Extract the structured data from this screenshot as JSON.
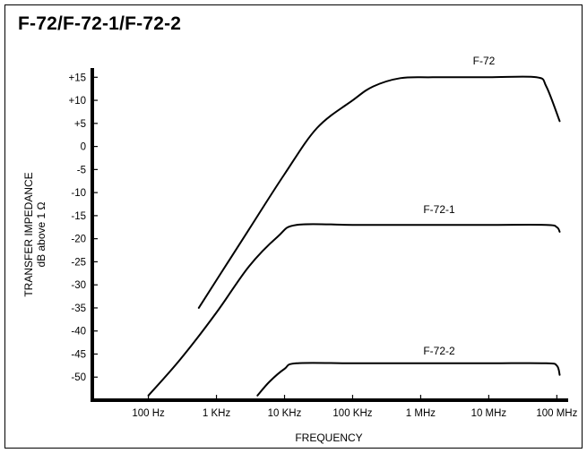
{
  "chart_data": {
    "type": "line",
    "title": "F-72/F-72-1/F-72-2",
    "xlabel": "FREQUENCY",
    "ylabel_lines": [
      "TRANSFER IMPEDANCE",
      "dB above 1 Ω"
    ],
    "x_scale": "log",
    "x_ticks": [
      {
        "value": 100,
        "label": "100 Hz"
      },
      {
        "value": 1000,
        "label": "1 KHz"
      },
      {
        "value": 10000,
        "label": "10 KHz"
      },
      {
        "value": 100000,
        "label": "100 KHz"
      },
      {
        "value": 1000000,
        "label": "1 MHz"
      },
      {
        "value": 10000000,
        "label": "10 MHz"
      },
      {
        "value": 100000000,
        "label": "100 MHz"
      }
    ],
    "y_ticks": [
      {
        "value": 15,
        "label": "+15"
      },
      {
        "value": 10,
        "label": "+10"
      },
      {
        "value": 5,
        "label": "+5"
      },
      {
        "value": 0,
        "label": "0"
      },
      {
        "value": -5,
        "label": "-5"
      },
      {
        "value": -10,
        "label": "-10"
      },
      {
        "value": -15,
        "label": "-15"
      },
      {
        "value": -20,
        "label": "-20"
      },
      {
        "value": -25,
        "label": "-25"
      },
      {
        "value": -30,
        "label": "-30"
      },
      {
        "value": -35,
        "label": "-35"
      },
      {
        "value": -40,
        "label": "-40"
      },
      {
        "value": -45,
        "label": "-45"
      },
      {
        "value": -50,
        "label": "-50"
      }
    ],
    "xlim": [
      15,
      130000000
    ],
    "ylim": [
      -55,
      17
    ],
    "grid": false,
    "series": [
      {
        "name": "F-72",
        "x": [
          550,
          1000,
          3000,
          10000,
          30000,
          100000,
          200000,
          500000,
          1500000,
          10000000,
          50000000,
          70000000,
          110000000
        ],
        "y": [
          -35,
          -29,
          -18,
          -6,
          4,
          10,
          13,
          14.8,
          15,
          15,
          15,
          13,
          5.5
        ]
      },
      {
        "name": "F-72-1",
        "x": [
          100,
          300,
          1000,
          3000,
          8000,
          15000,
          100000,
          1000000,
          10000000,
          70000000,
          100000000,
          110000000
        ],
        "y": [
          -54,
          -46,
          -36,
          -26,
          -19.5,
          -17,
          -17,
          -17,
          -17,
          -17,
          -17.5,
          -18.5
        ]
      },
      {
        "name": "F-72-2",
        "x": [
          4000,
          6000,
          10000,
          15000,
          100000,
          1000000,
          10000000,
          70000000,
          100000000,
          110000000
        ],
        "y": [
          -54,
          -51,
          -48.2,
          -47,
          -47,
          -47,
          -47,
          -47,
          -47.5,
          -49.5
        ]
      }
    ]
  }
}
